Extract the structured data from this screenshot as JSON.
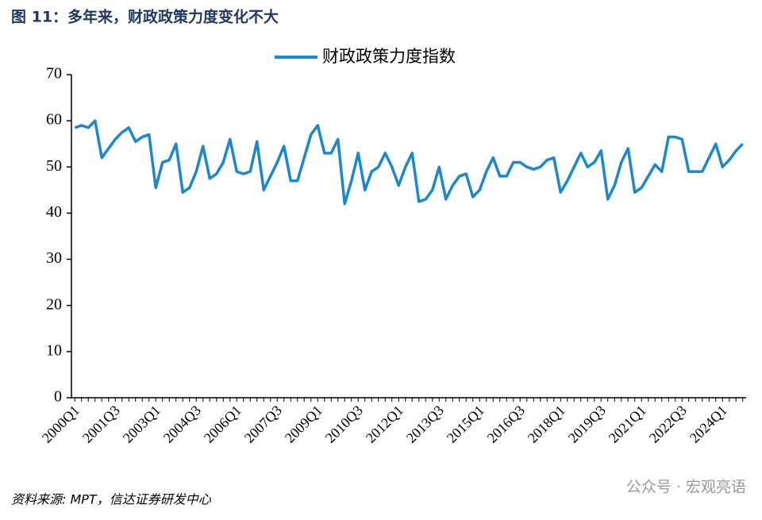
{
  "chart_data": {
    "type": "line",
    "title": "图 11：多年来，财政政策力度变化不大",
    "source": "资料来源: MPT，信达证券研发中心",
    "watermark": "公众号 · 宏观亮语",
    "legend": "top",
    "categories": [
      "2000Q1",
      null,
      null,
      null,
      null,
      null,
      "2001Q3",
      null,
      null,
      null,
      null,
      null,
      "2003Q1",
      null,
      null,
      null,
      null,
      null,
      "2004Q3",
      null,
      null,
      null,
      null,
      null,
      "2006Q1",
      null,
      null,
      null,
      null,
      null,
      "2007Q3",
      null,
      null,
      null,
      null,
      null,
      "2009Q1",
      null,
      null,
      null,
      null,
      null,
      "2010Q3",
      null,
      null,
      null,
      null,
      null,
      "2012Q1",
      null,
      null,
      null,
      null,
      null,
      "2013Q3",
      null,
      null,
      null,
      null,
      null,
      "2015Q1",
      null,
      null,
      null,
      null,
      null,
      "2016Q3",
      null,
      null,
      null,
      null,
      null,
      "2018Q1",
      null,
      null,
      null,
      null,
      null,
      "2019Q3",
      null,
      null,
      null,
      null,
      null,
      "2021Q1",
      null,
      null,
      null,
      null,
      null,
      "2022Q3",
      null,
      null,
      null,
      null,
      null,
      "2024Q1",
      null,
      null,
      null
    ],
    "series": [
      {
        "name": "财政政策力度指数",
        "color": "#1b87d0",
        "values": [
          58.5,
          59,
          58.5,
          60,
          52,
          54,
          56,
          57.5,
          58.5,
          55.5,
          56.5,
          57,
          45.5,
          51,
          51.5,
          55,
          44.5,
          45.5,
          49,
          54.5,
          47.5,
          48.5,
          51,
          56,
          49,
          48.5,
          49,
          55.5,
          45,
          48,
          51,
          54.5,
          47,
          47,
          52,
          57,
          59,
          53,
          53,
          56,
          42,
          47,
          53,
          45,
          49,
          50,
          53,
          50,
          46,
          50,
          53,
          42.5,
          43,
          45,
          50,
          43,
          46,
          48,
          48.5,
          43.5,
          45,
          49,
          52,
          48,
          48,
          51,
          51,
          50,
          49.5,
          50,
          51.5,
          52,
          44.5,
          47,
          50,
          53,
          50,
          51,
          53.5,
          43,
          46,
          51,
          54,
          44.5,
          45.5,
          48,
          50.5,
          49,
          56.5,
          56.5,
          56,
          49,
          49,
          49,
          52,
          55,
          50,
          51.5,
          53.5,
          55
        ]
      }
    ],
    "ylim": [
      0,
      70
    ],
    "yticks": [
      0,
      10,
      20,
      30,
      40,
      50,
      60,
      70
    ]
  }
}
